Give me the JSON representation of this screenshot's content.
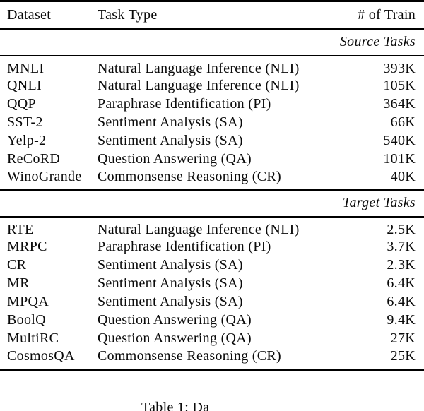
{
  "table": {
    "columns": [
      "Dataset",
      "Task Type",
      "# of Train"
    ],
    "sections": [
      {
        "label": "Source Tasks",
        "rows": [
          [
            "MNLI",
            "Natural Language Inference (NLI)",
            "393K"
          ],
          [
            "QNLI",
            "Natural Language Inference (NLI)",
            "105K"
          ],
          [
            "QQP",
            "Paraphrase Identification (PI)",
            "364K"
          ],
          [
            "SST-2",
            "Sentiment Analysis (SA)",
            "66K"
          ],
          [
            "Yelp-2",
            "Sentiment Analysis (SA)",
            "540K"
          ],
          [
            "ReCoRD",
            "Question Answering (QA)",
            "101K"
          ],
          [
            "WinoGrande",
            "Commonsense Reasoning (CR)",
            "40K"
          ]
        ]
      },
      {
        "label": "Target Tasks",
        "rows": [
          [
            "RTE",
            "Natural Language Inference (NLI)",
            "2.5K"
          ],
          [
            "MRPC",
            "Paraphrase Identification (PI)",
            "3.7K"
          ],
          [
            "CR",
            "Sentiment Analysis (SA)",
            "2.3K"
          ],
          [
            "MR",
            "Sentiment Analysis (SA)",
            "6.4K"
          ],
          [
            "MPQA",
            "Sentiment Analysis (SA)",
            "6.4K"
          ],
          [
            "BoolQ",
            "Question Answering (QA)",
            "9.4K"
          ],
          [
            "MultiRC",
            "Question Answering (QA)",
            "27K"
          ],
          [
            "CosmosQA",
            "Commonsense Reasoning (CR)",
            "25K"
          ]
        ]
      }
    ]
  },
  "caption": {
    "visible_text": "Table 1: Da"
  }
}
